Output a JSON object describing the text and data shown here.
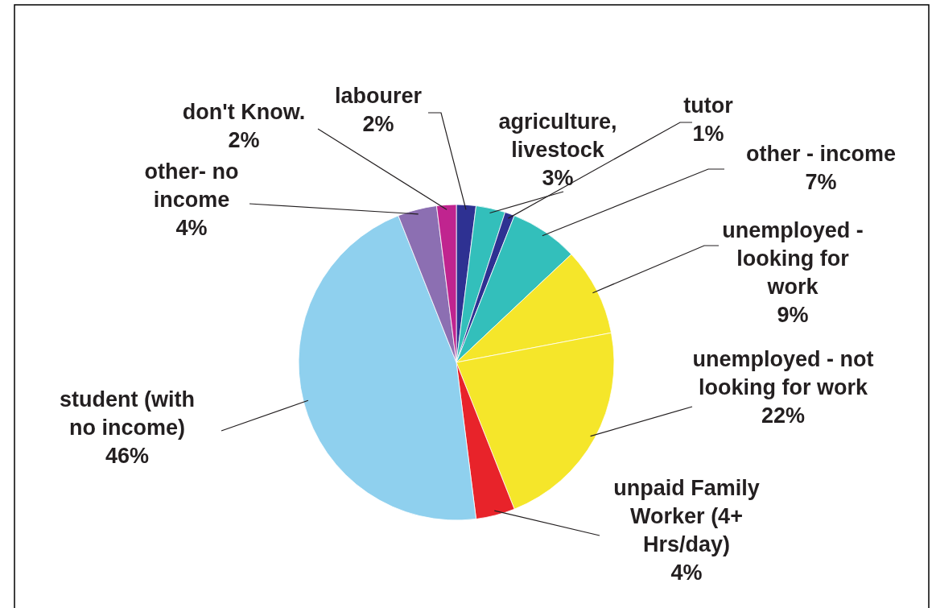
{
  "chart_data": {
    "type": "pie",
    "categories": [
      "labourer",
      "agriculture, livestock",
      "tutor",
      "other - income",
      "unemployed - looking for work",
      "unemployed - not looking for work",
      "unpaid Family Worker (4+ Hrs/day)",
      "student (with no income)",
      "other- no income",
      "don't Know."
    ],
    "values": [
      2,
      3,
      1,
      7,
      9,
      22,
      4,
      46,
      4,
      2
    ],
    "colors": [
      "#2e3192",
      "#33bfbb",
      "#2e3192",
      "#33bfbb",
      "#f5e62a",
      "#f5e62a",
      "#e8232a",
      "#8fd0ee",
      "#8c6fb2",
      "#c0248f"
    ],
    "value_labels": [
      "2%",
      "3%",
      "1%",
      "7%",
      "9%",
      "22%",
      "4%",
      "46%",
      "4%",
      "2%"
    ]
  }
}
